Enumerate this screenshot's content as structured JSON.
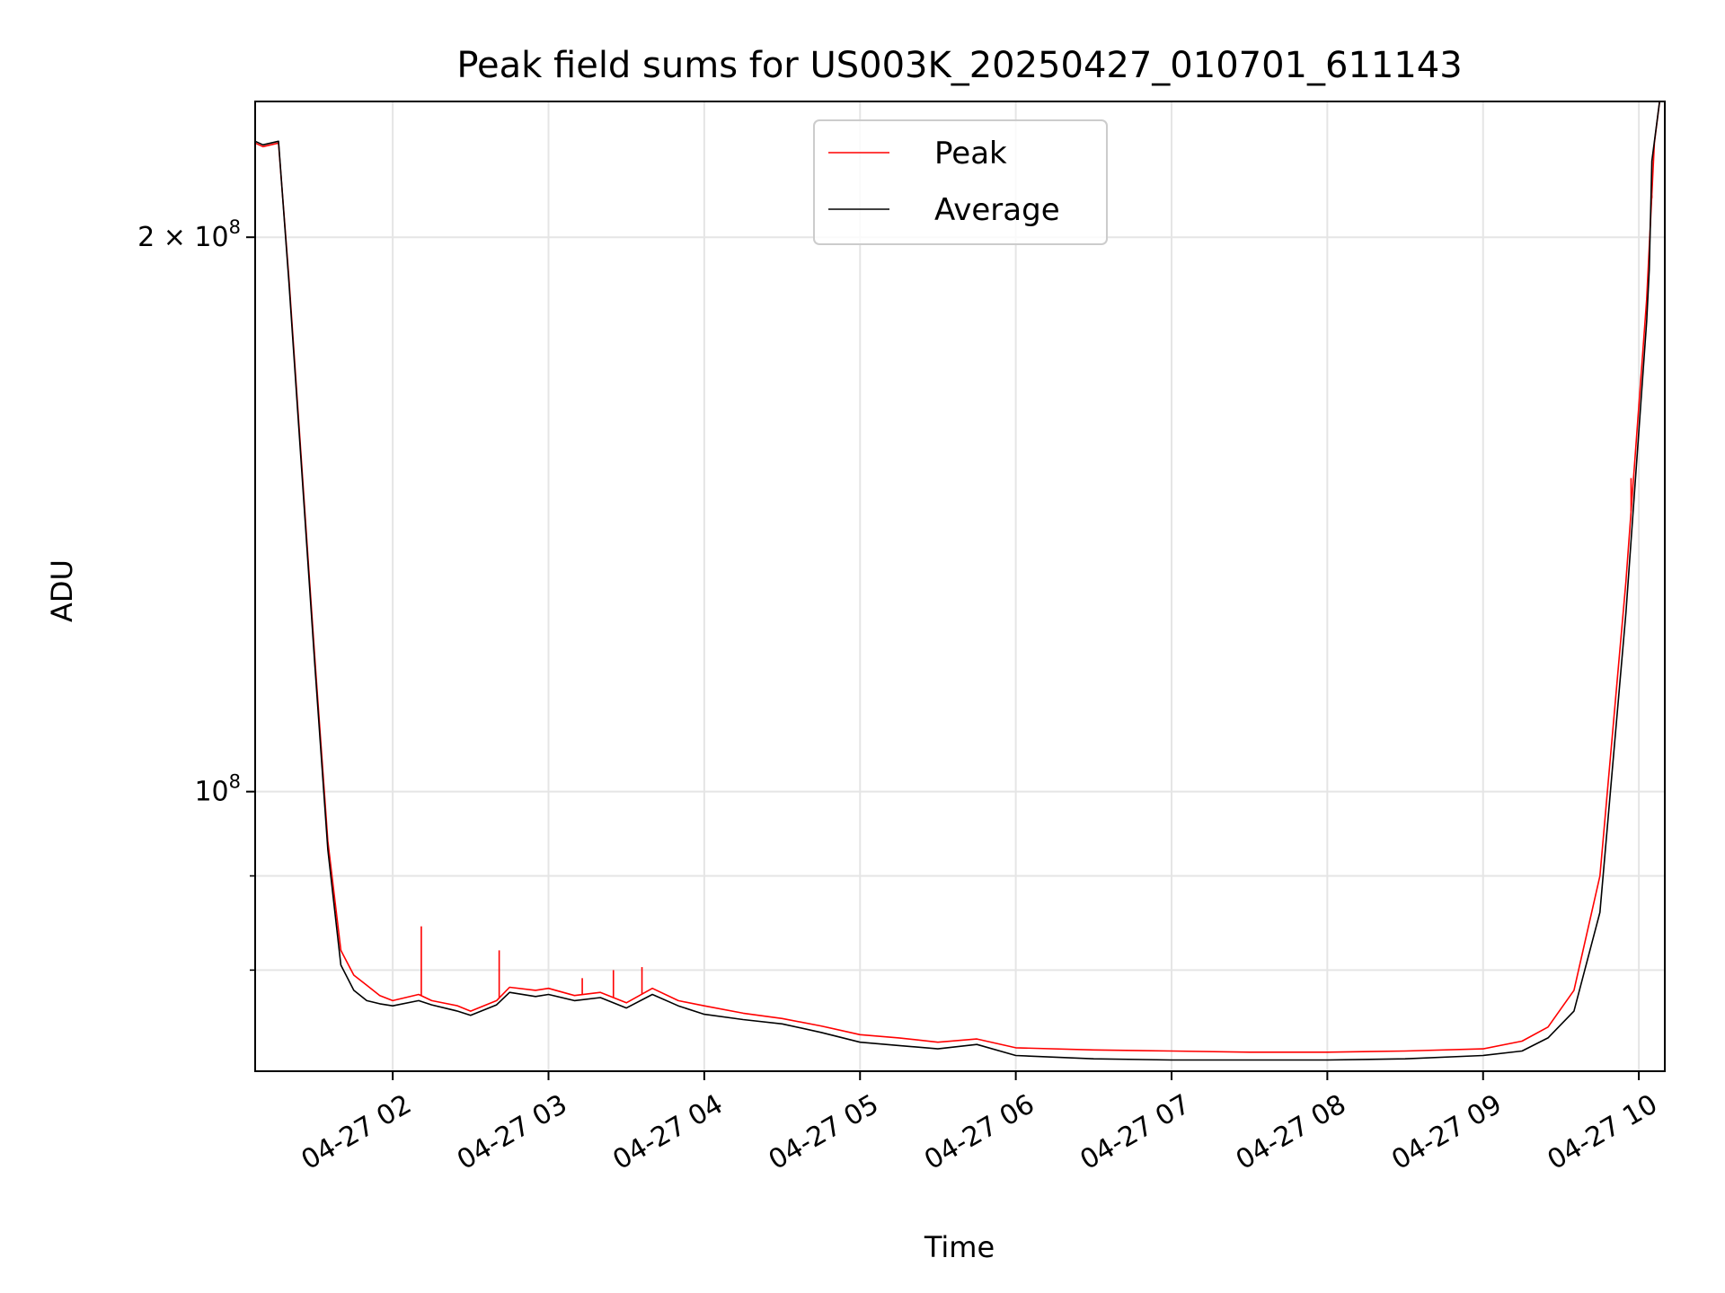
{
  "chart_data": {
    "type": "line",
    "title": "Peak field sums for US003K_20250427_010701_611143",
    "xlabel": "Time",
    "ylabel": "ADU",
    "yscale": "log",
    "xlim": [
      "2025-04-27T01:07",
      "2025-04-27T10:10"
    ],
    "ylim": [
      70500000,
      237000000
    ],
    "x_ticks": [
      {
        "t": "2025-04-27T02:00",
        "label": "04-27 02"
      },
      {
        "t": "2025-04-27T03:00",
        "label": "04-27 03"
      },
      {
        "t": "2025-04-27T04:00",
        "label": "04-27 04"
      },
      {
        "t": "2025-04-27T05:00",
        "label": "04-27 05"
      },
      {
        "t": "2025-04-27T06:00",
        "label": "04-27 06"
      },
      {
        "t": "2025-04-27T07:00",
        "label": "04-27 07"
      },
      {
        "t": "2025-04-27T08:00",
        "label": "04-27 08"
      },
      {
        "t": "2025-04-27T09:00",
        "label": "04-27 09"
      },
      {
        "t": "2025-04-27T10:00",
        "label": "04-27 10"
      }
    ],
    "y_major_ticks": [
      {
        "v": 100000000,
        "base": "10",
        "exp": "8"
      },
      {
        "v": 200000000,
        "base": "2 × 10",
        "exp": "8"
      }
    ],
    "y_minor_ticks": [
      80000000,
      90000000
    ],
    "grid": true,
    "legend": {
      "location": "upper center"
    },
    "series": [
      {
        "name": "Peak",
        "color": "#ff0000",
        "points": [
          [
            "2025-04-27T01:07",
            225000000
          ],
          [
            "2025-04-27T01:10",
            224000000
          ],
          [
            "2025-04-27T01:16",
            225000000
          ],
          [
            "2025-04-27T01:20",
            190000000
          ],
          [
            "2025-04-27T01:25",
            150000000
          ],
          [
            "2025-04-27T01:30",
            118000000
          ],
          [
            "2025-04-27T01:35",
            94000000
          ],
          [
            "2025-04-27T01:40",
            82000000
          ],
          [
            "2025-04-27T01:45",
            79500000
          ],
          [
            "2025-04-27T01:50",
            78500000
          ],
          [
            "2025-04-27T01:55",
            77500000
          ],
          [
            "2025-04-27T02:00",
            77000000
          ],
          [
            "2025-04-27T02:10",
            77600000
          ],
          [
            "2025-04-27T02:15",
            77000000
          ],
          [
            "2025-04-27T02:25",
            76500000
          ],
          [
            "2025-04-27T02:30",
            76000000
          ],
          [
            "2025-04-27T02:40",
            77000000
          ],
          [
            "2025-04-27T02:45",
            78300000
          ],
          [
            "2025-04-27T02:55",
            78000000
          ],
          [
            "2025-04-27T03:00",
            78200000
          ],
          [
            "2025-04-27T03:10",
            77500000
          ],
          [
            "2025-04-27T03:20",
            77800000
          ],
          [
            "2025-04-27T03:30",
            76800000
          ],
          [
            "2025-04-27T03:40",
            78200000
          ],
          [
            "2025-04-27T03:50",
            77000000
          ],
          [
            "2025-04-27T04:00",
            76500000
          ],
          [
            "2025-04-27T04:15",
            75800000
          ],
          [
            "2025-04-27T04:30",
            75300000
          ],
          [
            "2025-04-27T04:45",
            74600000
          ],
          [
            "2025-04-27T05:00",
            73800000
          ],
          [
            "2025-04-27T05:15",
            73500000
          ],
          [
            "2025-04-27T05:30",
            73100000
          ],
          [
            "2025-04-27T05:45",
            73400000
          ],
          [
            "2025-04-27T06:00",
            72600000
          ],
          [
            "2025-04-27T06:30",
            72400000
          ],
          [
            "2025-04-27T07:00",
            72300000
          ],
          [
            "2025-04-27T07:30",
            72200000
          ],
          [
            "2025-04-27T08:00",
            72200000
          ],
          [
            "2025-04-27T08:30",
            72300000
          ],
          [
            "2025-04-27T09:00",
            72500000
          ],
          [
            "2025-04-27T09:15",
            73200000
          ],
          [
            "2025-04-27T09:25",
            74500000
          ],
          [
            "2025-04-27T09:35",
            78000000
          ],
          [
            "2025-04-27T09:45",
            90000000
          ],
          [
            "2025-04-27T09:55",
            130000000
          ],
          [
            "2025-04-27T10:03",
            185000000
          ],
          [
            "2025-04-27T10:06",
            225000000
          ],
          [
            "2025-04-27T10:08",
            237000000
          ]
        ],
        "spikes": [
          [
            "2025-04-27T02:11",
            84500000
          ],
          [
            "2025-04-27T02:41",
            82000000
          ],
          [
            "2025-04-27T03:13",
            79200000
          ],
          [
            "2025-04-27T03:25",
            80000000
          ],
          [
            "2025-04-27T03:36",
            80300000
          ],
          [
            "2025-04-27T09:57",
            148000000
          ],
          [
            "2025-04-27T10:05",
            210000000
          ]
        ]
      },
      {
        "name": "Average",
        "color": "#000000",
        "points": [
          [
            "2025-04-27T01:07",
            225500000
          ],
          [
            "2025-04-27T01:10",
            224500000
          ],
          [
            "2025-04-27T01:16",
            225500000
          ],
          [
            "2025-04-27T01:20",
            189000000
          ],
          [
            "2025-04-27T01:25",
            149000000
          ],
          [
            "2025-04-27T01:30",
            117000000
          ],
          [
            "2025-04-27T01:35",
            93000000
          ],
          [
            "2025-04-27T01:40",
            80500000
          ],
          [
            "2025-04-27T01:45",
            78000000
          ],
          [
            "2025-04-27T01:50",
            77000000
          ],
          [
            "2025-04-27T01:55",
            76700000
          ],
          [
            "2025-04-27T02:00",
            76500000
          ],
          [
            "2025-04-27T02:10",
            77000000
          ],
          [
            "2025-04-27T02:15",
            76600000
          ],
          [
            "2025-04-27T02:25",
            76000000
          ],
          [
            "2025-04-27T02:30",
            75600000
          ],
          [
            "2025-04-27T02:40",
            76600000
          ],
          [
            "2025-04-27T02:45",
            77800000
          ],
          [
            "2025-04-27T02:55",
            77400000
          ],
          [
            "2025-04-27T03:00",
            77600000
          ],
          [
            "2025-04-27T03:10",
            77000000
          ],
          [
            "2025-04-27T03:20",
            77300000
          ],
          [
            "2025-04-27T03:30",
            76300000
          ],
          [
            "2025-04-27T03:40",
            77600000
          ],
          [
            "2025-04-27T03:50",
            76500000
          ],
          [
            "2025-04-27T04:00",
            75700000
          ],
          [
            "2025-04-27T04:15",
            75200000
          ],
          [
            "2025-04-27T04:30",
            74800000
          ],
          [
            "2025-04-27T04:45",
            74000000
          ],
          [
            "2025-04-27T05:00",
            73100000
          ],
          [
            "2025-04-27T05:15",
            72800000
          ],
          [
            "2025-04-27T05:30",
            72500000
          ],
          [
            "2025-04-27T05:45",
            72900000
          ],
          [
            "2025-04-27T06:00",
            71900000
          ],
          [
            "2025-04-27T06:30",
            71600000
          ],
          [
            "2025-04-27T07:00",
            71500000
          ],
          [
            "2025-04-27T07:30",
            71500000
          ],
          [
            "2025-04-27T08:00",
            71500000
          ],
          [
            "2025-04-27T08:30",
            71600000
          ],
          [
            "2025-04-27T09:00",
            71900000
          ],
          [
            "2025-04-27T09:15",
            72300000
          ],
          [
            "2025-04-27T09:25",
            73500000
          ],
          [
            "2025-04-27T09:35",
            76000000
          ],
          [
            "2025-04-27T09:45",
            86000000
          ],
          [
            "2025-04-27T09:55",
            125000000
          ],
          [
            "2025-04-27T10:03",
            180000000
          ],
          [
            "2025-04-27T10:04",
            192000000
          ],
          [
            "2025-04-27T10:05",
            220000000
          ],
          [
            "2025-04-27T10:08",
            237000000
          ]
        ]
      }
    ]
  }
}
